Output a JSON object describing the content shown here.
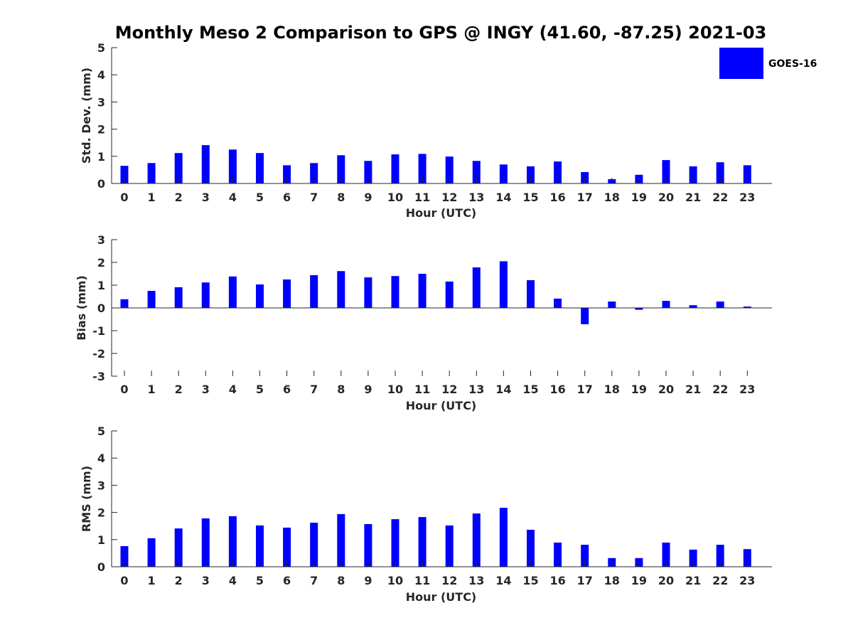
{
  "title": "Monthly Meso 2 Comparison to GPS @ INGY (41.60, -87.25) 2021-03",
  "colors": {
    "bar": "#0000ff",
    "axis": "#262626",
    "background": "#ffffff"
  },
  "legend": {
    "label": "GOES-16",
    "placement": "top-right"
  },
  "chart_data": [
    {
      "type": "bar",
      "ylabel": "Std. Dev. (mm)",
      "xlabel": "Hour (UTC)",
      "ylim": [
        0,
        5
      ],
      "yticks": [
        "0",
        "1",
        "2",
        "3",
        "4",
        "5"
      ],
      "categories": [
        "0",
        "1",
        "2",
        "3",
        "4",
        "5",
        "6",
        "7",
        "8",
        "9",
        "10",
        "11",
        "12",
        "13",
        "14",
        "15",
        "16",
        "17",
        "18",
        "19",
        "20",
        "21",
        "22",
        "23"
      ],
      "series": [
        {
          "name": "GOES-16",
          "values": [
            0.65,
            0.75,
            1.12,
            1.41,
            1.25,
            1.12,
            0.67,
            0.75,
            1.04,
            0.83,
            1.07,
            1.09,
            0.99,
            0.83,
            0.7,
            0.63,
            0.81,
            0.42,
            0.16,
            0.32,
            0.86,
            0.63,
            0.78,
            0.67
          ]
        }
      ]
    },
    {
      "type": "bar",
      "ylabel": "Bias (mm)",
      "xlabel": "Hour (UTC)",
      "ylim": [
        -3,
        3
      ],
      "yticks": [
        "-3",
        "-2",
        "-1",
        "0",
        "1",
        "2",
        "3"
      ],
      "categories": [
        "0",
        "1",
        "2",
        "3",
        "4",
        "5",
        "6",
        "7",
        "8",
        "9",
        "10",
        "11",
        "12",
        "13",
        "14",
        "15",
        "16",
        "17",
        "18",
        "19",
        "20",
        "21",
        "22",
        "23"
      ],
      "series": [
        {
          "name": "GOES-16",
          "values": [
            0.38,
            0.75,
            0.91,
            1.12,
            1.38,
            1.03,
            1.25,
            1.44,
            1.62,
            1.34,
            1.4,
            1.5,
            1.16,
            1.78,
            2.05,
            1.22,
            0.41,
            -0.72,
            0.28,
            -0.08,
            0.31,
            0.12,
            0.28,
            0.06
          ]
        }
      ]
    },
    {
      "type": "bar",
      "ylabel": "RMS (mm)",
      "xlabel": "Hour (UTC)",
      "ylim": [
        0,
        5
      ],
      "yticks": [
        "0",
        "1",
        "2",
        "3",
        "4",
        "5"
      ],
      "categories": [
        "0",
        "1",
        "2",
        "3",
        "4",
        "5",
        "6",
        "7",
        "8",
        "9",
        "10",
        "11",
        "12",
        "13",
        "14",
        "15",
        "16",
        "17",
        "18",
        "19",
        "20",
        "21",
        "22",
        "23"
      ],
      "series": [
        {
          "name": "GOES-16",
          "values": [
            0.76,
            1.05,
            1.41,
            1.78,
            1.86,
            1.52,
            1.44,
            1.62,
            1.94,
            1.57,
            1.75,
            1.83,
            1.52,
            1.96,
            2.17,
            1.36,
            0.89,
            0.81,
            0.32,
            0.32,
            0.89,
            0.63,
            0.81,
            0.65
          ]
        }
      ]
    }
  ]
}
